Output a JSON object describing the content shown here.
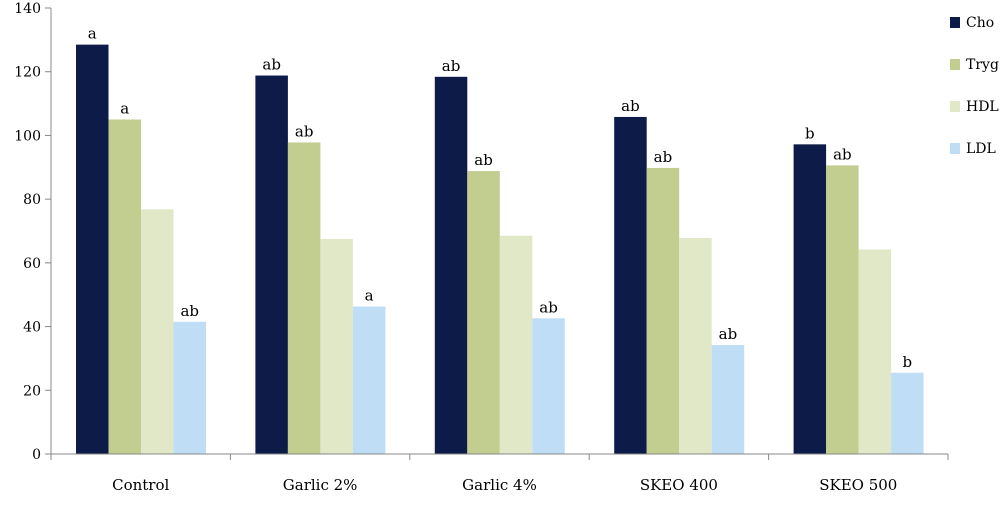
{
  "chart_data": {
    "type": "bar",
    "title": "",
    "xlabel": "",
    "ylabel": "",
    "ylim": [
      0,
      140
    ],
    "yticks": [
      0,
      20,
      40,
      60,
      80,
      100,
      120,
      140
    ],
    "grid": false,
    "legend_position": "right",
    "categories": [
      "Control",
      "Garlic 2%",
      "Garlic 4%",
      "SKEO 400",
      "SKEO 500"
    ],
    "series": [
      {
        "name": "Cho",
        "color": "#0c1b47",
        "values": [
          128.5,
          118.8,
          118.4,
          105.8,
          97.2
        ],
        "labels": [
          "a",
          "ab",
          "ab",
          "ab",
          "b"
        ]
      },
      {
        "name": "Tryg",
        "color": "#c2cd90",
        "values": [
          105.0,
          97.8,
          88.8,
          89.8,
          90.6
        ],
        "labels": [
          "a",
          "ab",
          "ab",
          "ab",
          "ab"
        ]
      },
      {
        "name": "HDL",
        "color": "#e1e8c7",
        "values": [
          76.8,
          67.5,
          68.5,
          67.8,
          64.2
        ],
        "labels": [
          "",
          "",
          "",
          "",
          ""
        ]
      },
      {
        "name": "LDL",
        "color": "#bfdef5",
        "values": [
          41.5,
          46.3,
          42.6,
          34.2,
          25.5
        ],
        "labels": [
          "ab",
          "a",
          "ab",
          "ab",
          "b"
        ]
      }
    ]
  }
}
